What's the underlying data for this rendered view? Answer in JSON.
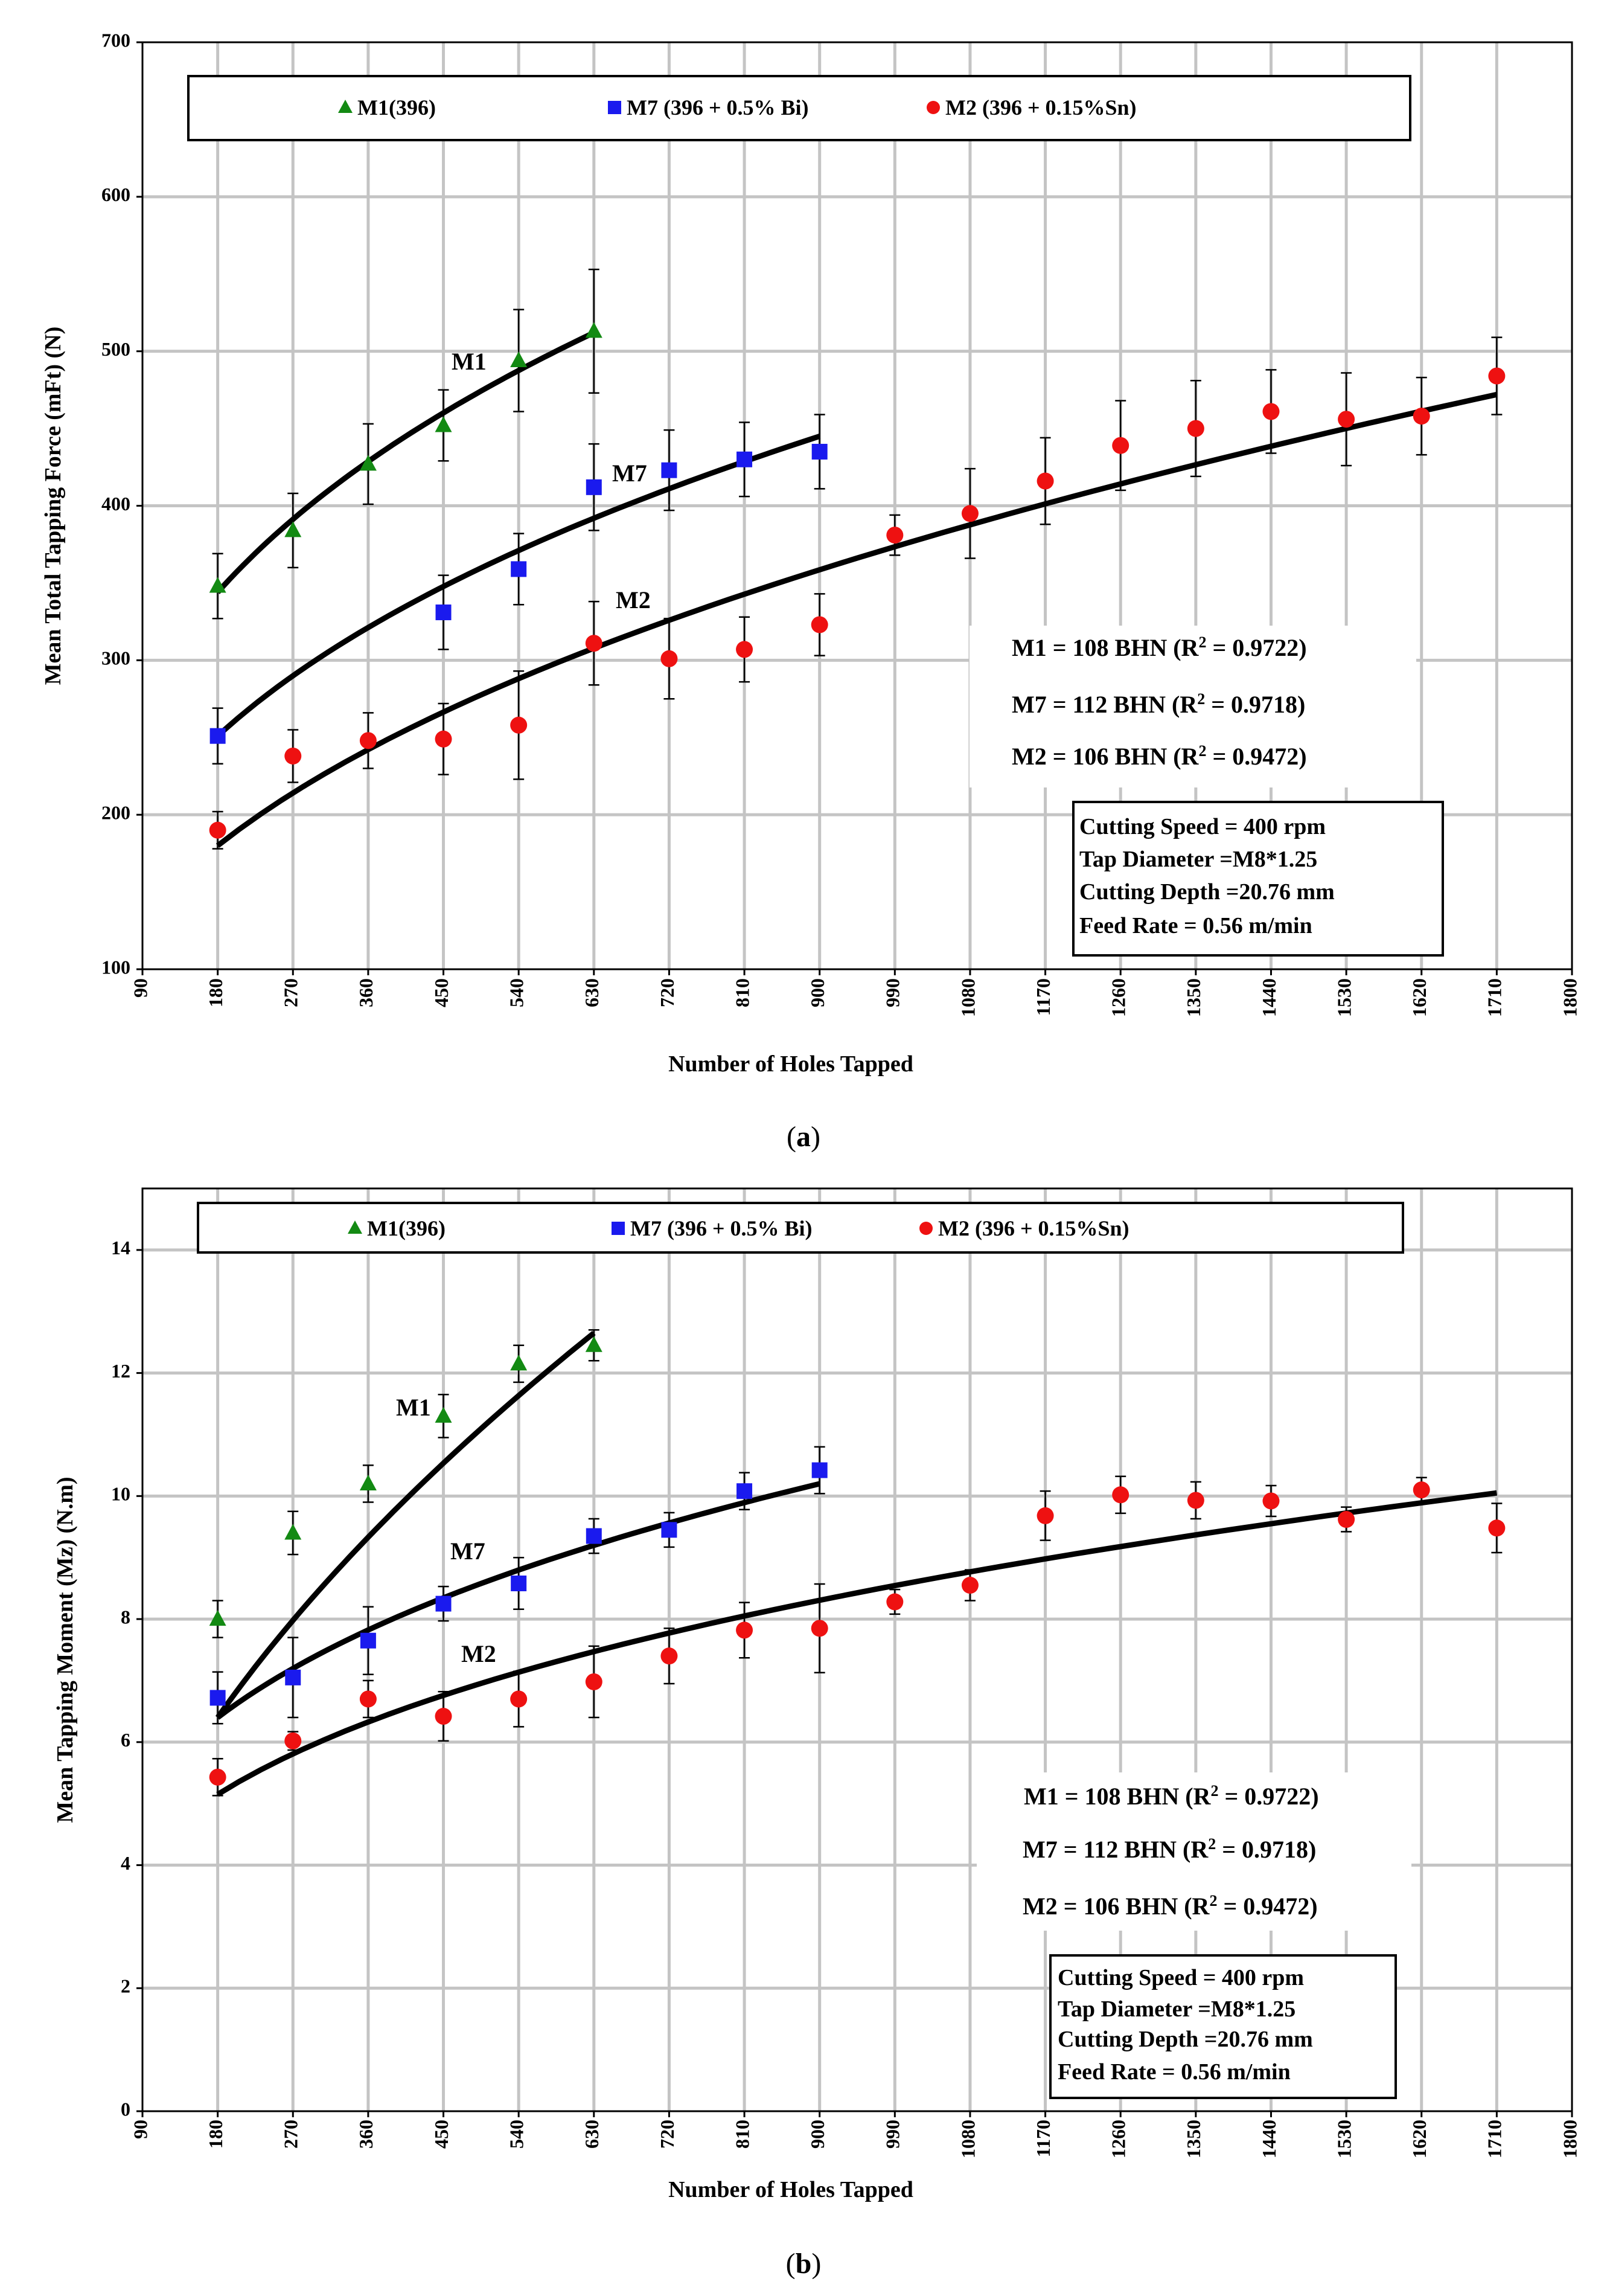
{
  "chart_data": [
    {
      "type": "scatter",
      "caption_letter": "a",
      "xlabel": "Number of Holes Tapped",
      "ylabel": "Mean Total Tapping Force (mFt) (N)",
      "xlim": [
        90,
        1800
      ],
      "ylim": [
        100,
        700
      ],
      "xticks": [
        90,
        180,
        270,
        360,
        450,
        540,
        630,
        720,
        810,
        900,
        990,
        1080,
        1170,
        1260,
        1350,
        1440,
        1530,
        1620,
        1710,
        1800
      ],
      "yticks": [
        100,
        200,
        300,
        400,
        500,
        600,
        700
      ],
      "legend": [
        "M1(396)",
        "M7 (396 + 0.5% Bi)",
        "M2 (396 + 0.15%Sn)"
      ],
      "series": [
        {
          "name": "M1(396)",
          "color": "#138a13",
          "marker": "triangle",
          "x": [
            180,
            270,
            360,
            450,
            540,
            630
          ],
          "y": [
            348,
            384,
            427,
            452,
            494,
            513
          ],
          "err": [
            21,
            24,
            26,
            23,
            33,
            40
          ],
          "fit_x": [
            180,
            630
          ],
          "fit_label": "M1",
          "fit": [
            344,
            383,
            417,
            432,
            450,
            465,
            475,
            487,
            499,
            511
          ]
        },
        {
          "name": "M7 (396 + 0.5% Bi)",
          "color": "#1a1aee",
          "marker": "square",
          "x": [
            180,
            450,
            540,
            630,
            720,
            810,
            900
          ],
          "y": [
            251,
            331,
            359,
            412,
            423,
            430,
            435
          ],
          "err": [
            18,
            24,
            23,
            28,
            26,
            24,
            24
          ],
          "fit_x": [
            180,
            900
          ],
          "fit_label": "M7"
        },
        {
          "name": "M2 (396 + 0.15%Sn)",
          "color": "#ee1111",
          "marker": "circle",
          "x": [
            180,
            270,
            360,
            450,
            540,
            630,
            720,
            810,
            900,
            990,
            1080,
            1170,
            1260,
            1350,
            1440,
            1530,
            1620,
            1710
          ],
          "y": [
            190,
            238,
            248,
            249,
            258,
            311,
            301,
            307,
            323,
            381,
            395,
            416,
            439,
            450,
            461,
            456,
            458,
            484
          ],
          "err": [
            12,
            17,
            18,
            23,
            35,
            27,
            26,
            21,
            20,
            13,
            29,
            28,
            29,
            31,
            27,
            30,
            25,
            25
          ],
          "fit_x": [
            180,
            1710
          ],
          "fit_label": "M2"
        }
      ],
      "fits": {
        "M1": {
          "start": 344,
          "end": 512
        },
        "M7": {
          "start": 251,
          "end": 445
        },
        "M2": {
          "start": 180,
          "end": 472
        }
      },
      "annotations": [
        "M1 = 108 BHN (R",
        " =  0.9722)",
        "M7 = 112 BHN (R",
        " = 0.9718)",
        "M2 = 106 BHN (R",
        " = 0.9472)"
      ],
      "conditions": [
        "Cutting Speed = 400 rpm",
        "Tap Diameter =M8*1.25",
        "Cutting Depth =20.76 mm",
        "Feed Rate = 0.56 m/min"
      ]
    },
    {
      "type": "scatter",
      "caption_letter": "b",
      "xlabel": "Number of Holes Tapped",
      "ylabel": "Mean Tapping Moment (Mz) (N.m)",
      "xlim": [
        90,
        1800
      ],
      "ylim": [
        0,
        15
      ],
      "xticks": [
        90,
        180,
        270,
        360,
        450,
        540,
        630,
        720,
        810,
        900,
        990,
        1080,
        1170,
        1260,
        1350,
        1440,
        1530,
        1620,
        1710,
        1800
      ],
      "yticks": [
        0,
        2,
        4,
        6,
        8,
        10,
        12,
        14
      ],
      "legend": [
        "M1(396)",
        "M7 (396 + 0.5% Bi)",
        "M2 (396 + 0.15%Sn)"
      ],
      "series": [
        {
          "name": "M1(396)",
          "color": "#138a13",
          "marker": "triangle",
          "x": [
            180,
            270,
            360,
            450,
            540,
            630
          ],
          "y": [
            8.0,
            9.4,
            10.2,
            11.3,
            12.15,
            12.45
          ],
          "err": [
            0.3,
            0.35,
            0.3,
            0.35,
            0.3,
            0.25
          ],
          "fit_label": "M1"
        },
        {
          "name": "M7 (396 + 0.5% Bi)",
          "color": "#1a1aee",
          "marker": "square",
          "x": [
            180,
            270,
            360,
            450,
            540,
            630,
            720,
            810,
            900
          ],
          "y": [
            6.72,
            7.05,
            7.65,
            8.25,
            8.58,
            9.35,
            9.45,
            10.08,
            10.42
          ],
          "err": [
            0.42,
            0.65,
            0.55,
            0.28,
            0.42,
            0.28,
            0.28,
            0.3,
            0.38
          ],
          "fit_label": "M7"
        },
        {
          "name": "M2 (396 + 0.15%Sn)",
          "color": "#ee1111",
          "marker": "circle",
          "x": [
            180,
            270,
            360,
            450,
            540,
            630,
            720,
            810,
            900,
            990,
            1080,
            1170,
            1260,
            1350,
            1440,
            1530,
            1620,
            1710
          ],
          "y": [
            5.43,
            6.02,
            6.7,
            6.42,
            6.7,
            6.98,
            7.4,
            7.82,
            7.85,
            8.28,
            8.55,
            9.68,
            10.02,
            9.93,
            9.92,
            9.62,
            10.1,
            9.48
          ],
          "err": [
            0.3,
            0.15,
            0.3,
            0.4,
            0.45,
            0.58,
            0.45,
            0.45,
            0.72,
            0.2,
            0.25,
            0.4,
            0.3,
            0.3,
            0.25,
            0.2,
            0.2,
            0.4
          ],
          "fit_label": "M2"
        }
      ],
      "fits": {
        "M1": {
          "start": 6.4,
          "end": 12.65
        },
        "M7": {
          "start": 6.4,
          "end": 10.2
        },
        "M2": {
          "start": 5.15,
          "end": 10.05
        }
      },
      "annotations": [
        "M1 = 108 BHN (R",
        " =  0.9722)",
        "M7 = 112 BHN (R",
        " = 0.9718)",
        "M2 = 106 BHN (R",
        " = 0.9472)"
      ],
      "conditions": [
        "Cutting Speed = 400 rpm",
        "Tap Diameter =M8*1.25",
        "Cutting Depth =20.76 mm",
        "Feed Rate = 0.56 m/min"
      ]
    }
  ]
}
